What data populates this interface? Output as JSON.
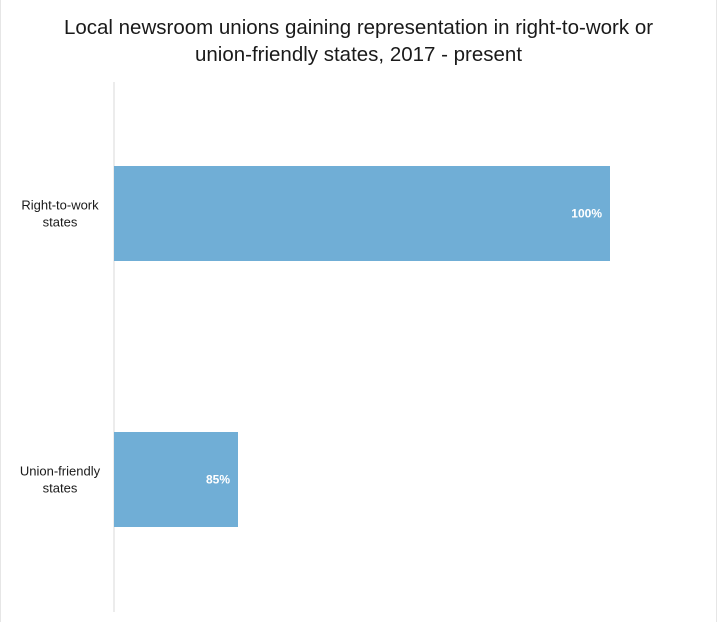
{
  "chart_data": {
    "type": "bar",
    "orientation": "horizontal",
    "title": "Local newsroom unions gaining representation in right-to-work or union-friendly states, 2017 - present",
    "title_lines": [
      "Local newsroom unions gaining representation in right-to-work or",
      "union-friendly states, 2017 - present"
    ],
    "xlabel": "",
    "ylabel": "",
    "categories": [
      [
        "Right-to-work",
        "states"
      ],
      [
        "Union-friendly",
        "states"
      ]
    ],
    "values": [
      100,
      85
    ],
    "data_labels": [
      "100%",
      "85%"
    ],
    "xlim": [
      80,
      100
    ],
    "grid": false,
    "legend": "none",
    "colors": {
      "bar": "#70aed6",
      "axis": "#d9d9d9",
      "label_text": "#ffffff"
    }
  }
}
